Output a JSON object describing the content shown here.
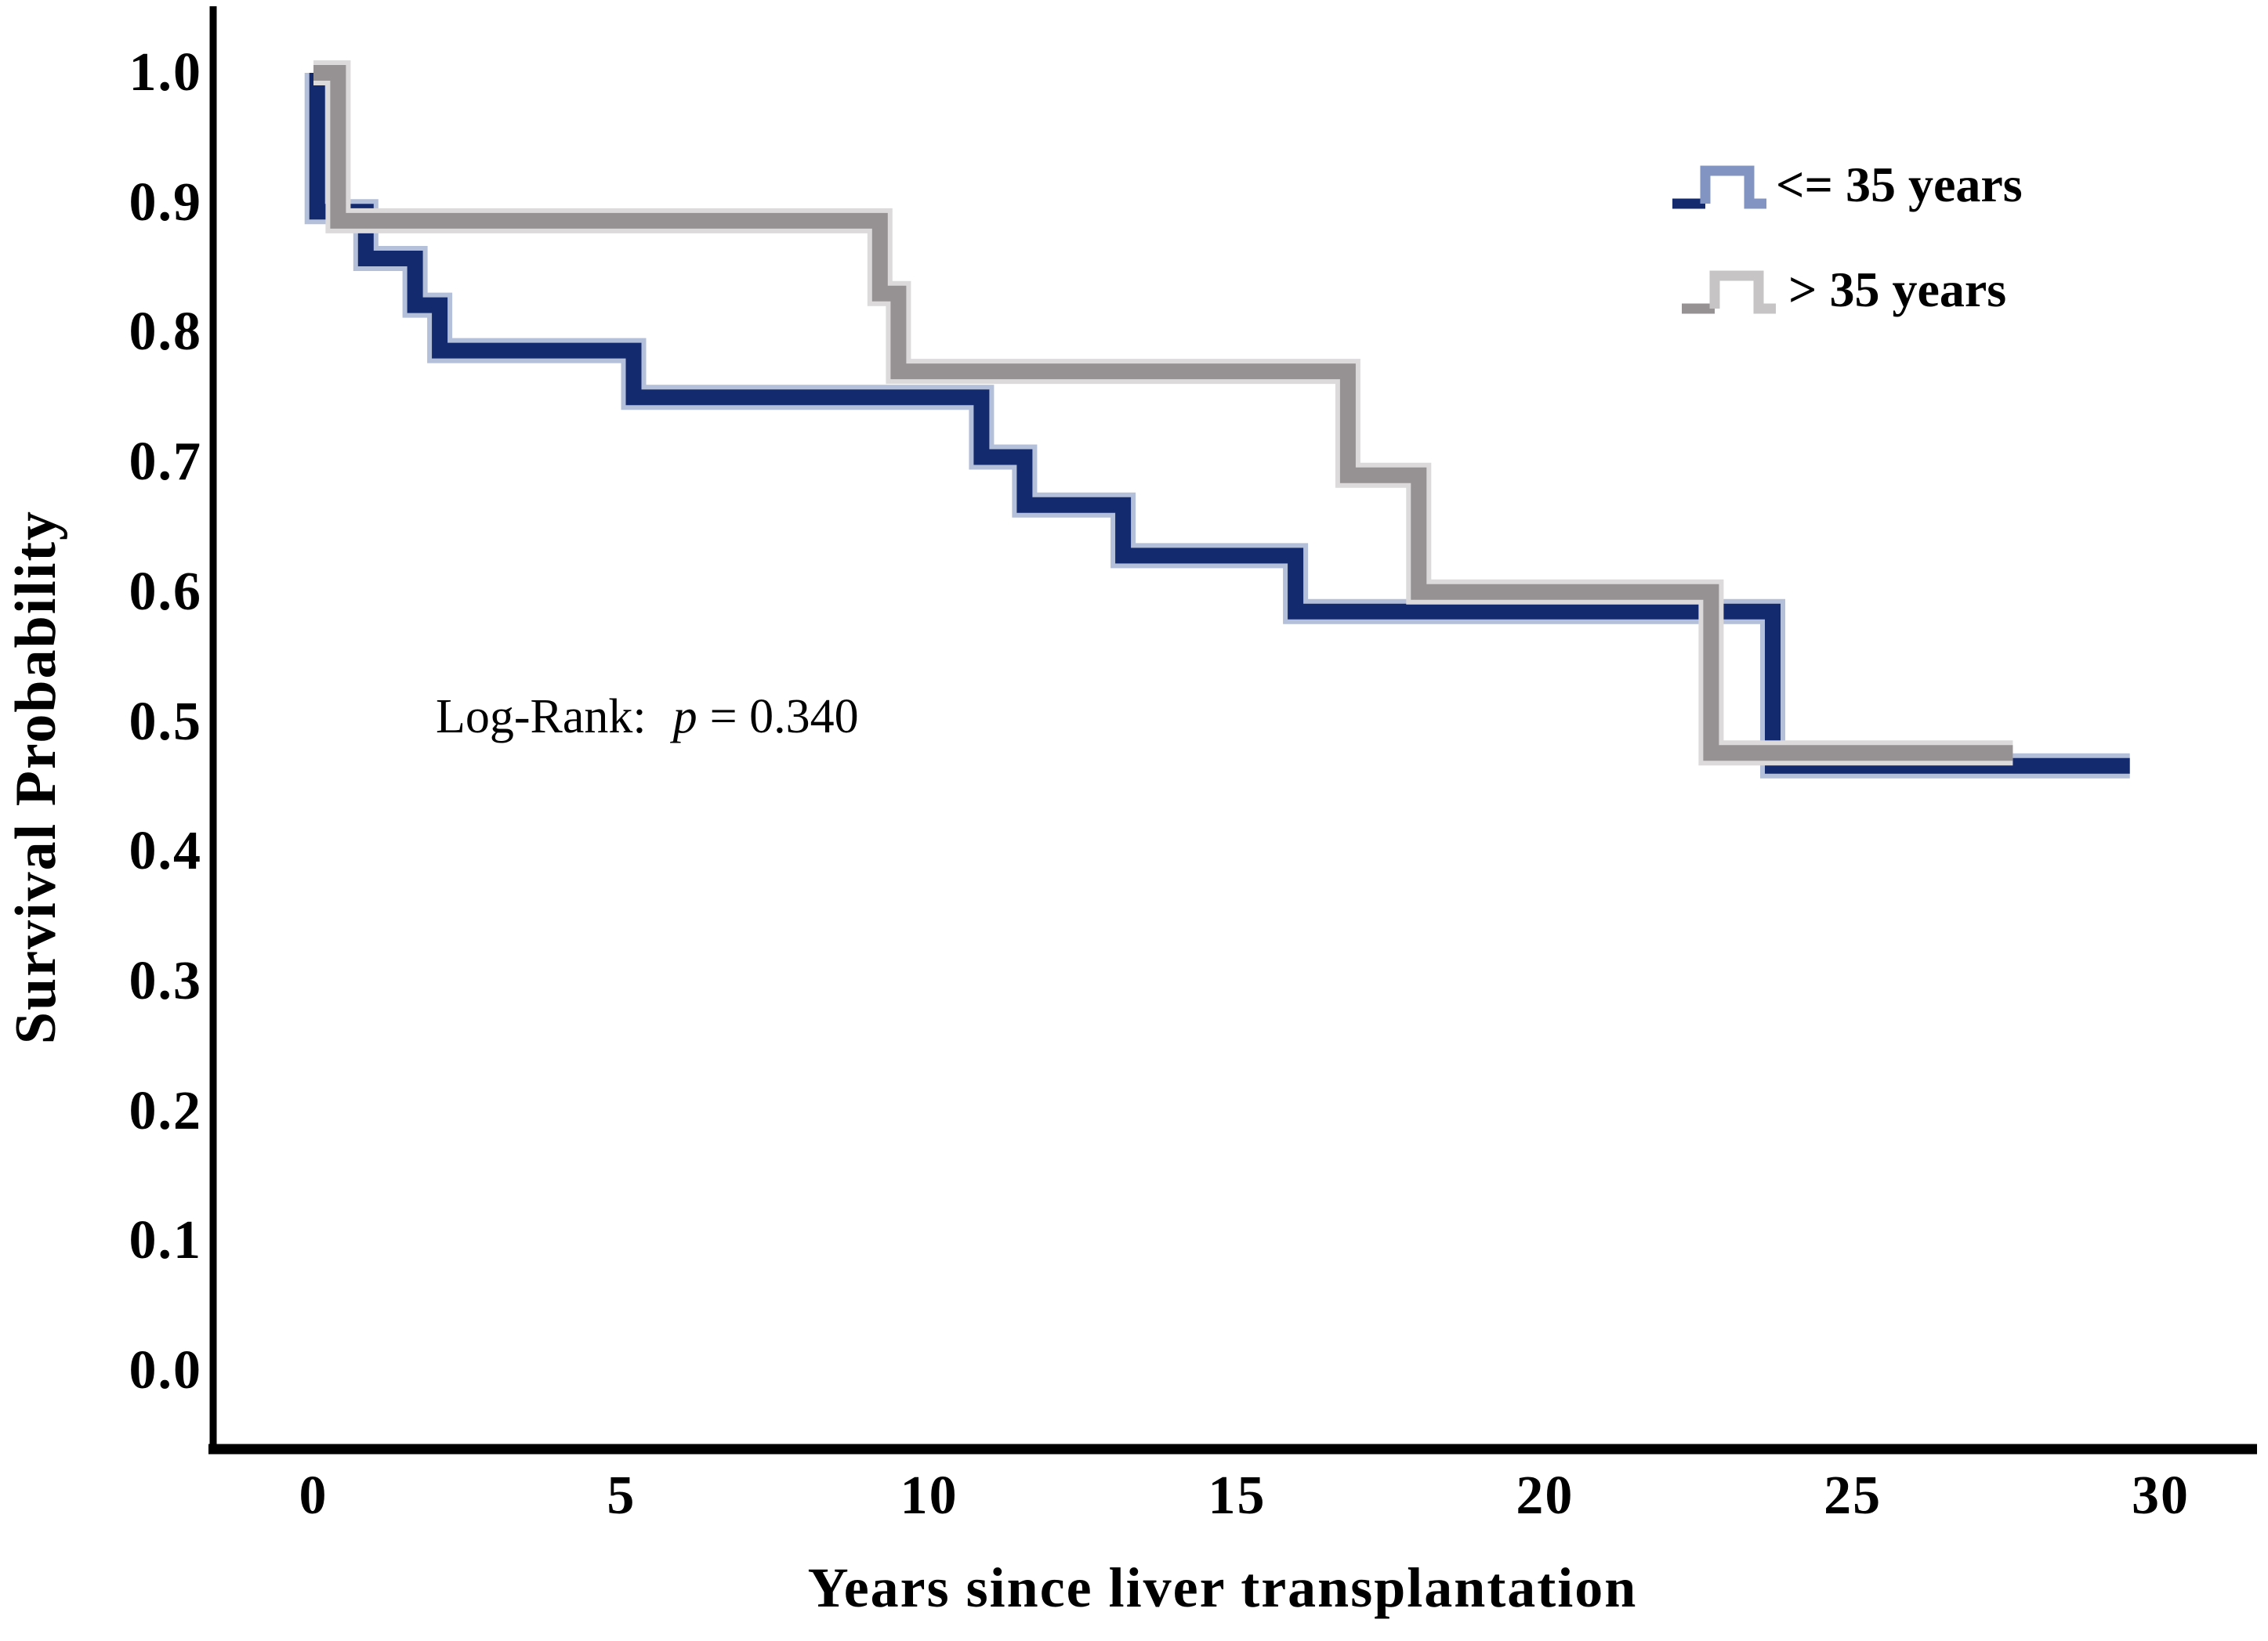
{
  "chart_data": {
    "type": "line",
    "subtype": "kaplan-meier-step",
    "title": "",
    "xlabel": "Years since liver transplantation",
    "ylabel": "Survival Probability",
    "xlim": [
      0,
      30
    ],
    "ylim": [
      0.0,
      1.0
    ],
    "x_ticks": [
      0,
      5,
      10,
      15,
      20,
      25,
      30
    ],
    "y_ticks": [
      "1.0",
      "0.9",
      "0.8",
      "0.7",
      "0.6",
      "0.5",
      "0.4",
      "0.3",
      "0.2",
      "0.1",
      "0.0"
    ],
    "grid": false,
    "legend_position": "top-right",
    "annotation": {
      "prefix": "Log-Rank:",
      "stat_symbol": "p",
      "value_text": "= 0.340"
    },
    "axis_color": "#000000",
    "background_color": "#ffffff",
    "series": [
      {
        "name": "<= 35 years",
        "color": "#142a6e",
        "halo_color": "#b4bfd9",
        "legend_step_color": "#8294c2",
        "steps": [
          [
            0,
            1.0
          ],
          [
            0.06,
            0.893
          ],
          [
            0.85,
            0.857
          ],
          [
            1.65,
            0.821
          ],
          [
            2.05,
            0.786
          ],
          [
            5.2,
            0.75
          ],
          [
            10.85,
            0.704
          ],
          [
            11.55,
            0.667
          ],
          [
            13.15,
            0.628
          ],
          [
            15.95,
            0.585
          ],
          [
            23.7,
            0.466
          ]
        ],
        "end_time": 29.5
      },
      {
        "name": "> 35 years",
        "color": "#969294",
        "halo_color": "#dcdadb",
        "legend_step_color": "#c7c4c5",
        "steps": [
          [
            0,
            1.0
          ],
          [
            0.4,
            0.886
          ],
          [
            9.2,
            0.83
          ],
          [
            9.5,
            0.77
          ],
          [
            16.8,
            0.69
          ],
          [
            17.95,
            0.6
          ],
          [
            22.7,
            0.476
          ]
        ],
        "end_time": 27.6
      }
    ]
  }
}
